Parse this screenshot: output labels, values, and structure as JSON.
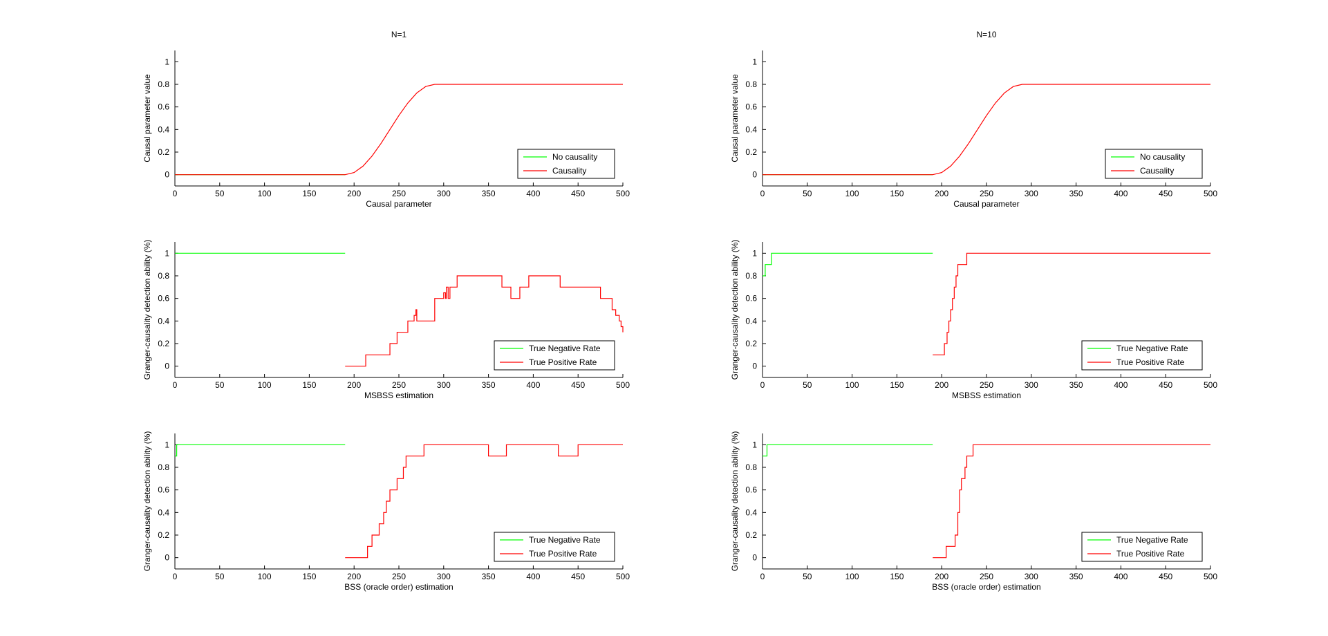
{
  "figure": {
    "background": "#ffffff",
    "colors": {
      "green": "#00ff00",
      "red": "#ff0000",
      "axis": "#000000"
    }
  },
  "chart_data": [
    {
      "id": "n1-causal",
      "type": "line",
      "title": "N=1",
      "xlabel": "Causal parameter",
      "ylabel": "Causal parameter value",
      "xlim": [
        0,
        500
      ],
      "ylim": [
        -0.1,
        1.1
      ],
      "xticks": [
        0,
        50,
        100,
        150,
        200,
        250,
        300,
        350,
        400,
        450,
        500
      ],
      "yticks": [
        0,
        0.2,
        0.4,
        0.6,
        0.8,
        1
      ],
      "ytick_labels": [
        "0",
        "0.2",
        "0.4",
        "0.6",
        "0.8",
        "1"
      ],
      "legend_position": "bottom-right",
      "series": [
        {
          "name": "No causality",
          "color": "#00ff00",
          "step": false,
          "x": [
            0,
            190
          ],
          "y": [
            0,
            0
          ]
        },
        {
          "name": "Causality",
          "color": "#ff0000",
          "step": false,
          "x": [
            0,
            190,
            200,
            210,
            220,
            230,
            240,
            250,
            260,
            270,
            280,
            290,
            300,
            350,
            400,
            450,
            500
          ],
          "y": [
            0,
            0,
            0.019,
            0.076,
            0.165,
            0.276,
            0.4,
            0.524,
            0.635,
            0.724,
            0.781,
            0.8,
            0.8,
            0.8,
            0.8,
            0.8,
            0.8
          ]
        }
      ]
    },
    {
      "id": "n10-causal",
      "type": "line",
      "title": "N=10",
      "xlabel": "Causal parameter",
      "ylabel": "Causal parameter value",
      "xlim": [
        0,
        500
      ],
      "ylim": [
        -0.1,
        1.1
      ],
      "xticks": [
        0,
        50,
        100,
        150,
        200,
        250,
        300,
        350,
        400,
        450,
        500
      ],
      "yticks": [
        0,
        0.2,
        0.4,
        0.6,
        0.8,
        1
      ],
      "ytick_labels": [
        "0",
        "0.2",
        "0.4",
        "0.6",
        "0.8",
        "1"
      ],
      "legend_position": "bottom-right",
      "series": [
        {
          "name": "No causality",
          "color": "#00ff00",
          "step": false,
          "x": [
            0,
            190
          ],
          "y": [
            0,
            0
          ]
        },
        {
          "name": "Causality",
          "color": "#ff0000",
          "step": false,
          "x": [
            0,
            190,
            200,
            210,
            220,
            230,
            240,
            250,
            260,
            270,
            280,
            290,
            300,
            350,
            400,
            450,
            500
          ],
          "y": [
            0,
            0,
            0.019,
            0.076,
            0.165,
            0.276,
            0.4,
            0.524,
            0.635,
            0.724,
            0.781,
            0.8,
            0.8,
            0.8,
            0.8,
            0.8,
            0.8
          ]
        }
      ]
    },
    {
      "id": "n1-msbss",
      "type": "line",
      "title": "",
      "xlabel": "MSBSS estimation",
      "ylabel": "Granger-causality detection ability (%)",
      "xlim": [
        0,
        500
      ],
      "ylim": [
        -0.1,
        1.1
      ],
      "xticks": [
        0,
        50,
        100,
        150,
        200,
        250,
        300,
        350,
        400,
        450,
        500
      ],
      "yticks": [
        0,
        0.2,
        0.4,
        0.6,
        0.8,
        1
      ],
      "ytick_labels": [
        "0",
        "0.2",
        "0.4",
        "0.6",
        "0.8",
        "1"
      ],
      "legend_position": "bottom-right",
      "series": [
        {
          "name": "True Negative Rate",
          "color": "#00ff00",
          "step": true,
          "x": [
            0,
            190
          ],
          "y": [
            1,
            1
          ]
        },
        {
          "name": "True Positive Rate",
          "color": "#ff0000",
          "step": true,
          "x": [
            190,
            213,
            240,
            248,
            260,
            267,
            269,
            270,
            272,
            290,
            300,
            302,
            303,
            305,
            307,
            315,
            365,
            375,
            385,
            395,
            430,
            475,
            488,
            492,
            496,
            498,
            500
          ],
          "y": [
            0,
            0.1,
            0.2,
            0.3,
            0.4,
            0.45,
            0.5,
            0.4,
            0.4,
            0.6,
            0.65,
            0.6,
            0.7,
            0.6,
            0.7,
            0.8,
            0.7,
            0.6,
            0.7,
            0.8,
            0.7,
            0.6,
            0.5,
            0.45,
            0.4,
            0.35,
            0.3
          ]
        }
      ]
    },
    {
      "id": "n10-msbss",
      "type": "line",
      "title": "",
      "xlabel": "MSBSS estimation",
      "ylabel": "Granger-causality detection ability (%)",
      "xlim": [
        0,
        500
      ],
      "ylim": [
        -0.1,
        1.1
      ],
      "xticks": [
        0,
        50,
        100,
        150,
        200,
        250,
        300,
        350,
        400,
        450,
        500
      ],
      "yticks": [
        0,
        0.2,
        0.4,
        0.6,
        0.8,
        1
      ],
      "ytick_labels": [
        "0",
        "0.2",
        "0.4",
        "0.6",
        "0.8",
        "1"
      ],
      "legend_position": "bottom-right",
      "series": [
        {
          "name": "True Negative Rate",
          "color": "#00ff00",
          "step": true,
          "x": [
            0,
            3,
            5,
            10,
            190
          ],
          "y": [
            0.8,
            0.9,
            0.9,
            1,
            1
          ]
        },
        {
          "name": "True Positive Rate",
          "color": "#ff0000",
          "step": true,
          "x": [
            190,
            203,
            206,
            208,
            210,
            212,
            214,
            216,
            218,
            222,
            228,
            500
          ],
          "y": [
            0.1,
            0.2,
            0.3,
            0.4,
            0.5,
            0.6,
            0.7,
            0.8,
            0.9,
            0.9,
            1,
            1
          ]
        }
      ]
    },
    {
      "id": "n1-bss",
      "type": "line",
      "title": "",
      "xlabel": "BSS (oracle order) estimation",
      "ylabel": "Granger-causality detection ability (%)",
      "xlim": [
        0,
        500
      ],
      "ylim": [
        -0.1,
        1.1
      ],
      "xticks": [
        0,
        50,
        100,
        150,
        200,
        250,
        300,
        350,
        400,
        450,
        500
      ],
      "yticks": [
        0,
        0.2,
        0.4,
        0.6,
        0.8,
        1
      ],
      "ytick_labels": [
        "0",
        "0.2",
        "0.4",
        "0.6",
        "0.8",
        "1"
      ],
      "legend_position": "bottom-right",
      "series": [
        {
          "name": "True Negative Rate",
          "color": "#00ff00",
          "step": true,
          "x": [
            0,
            2,
            190
          ],
          "y": [
            0.9,
            1,
            1
          ]
        },
        {
          "name": "True Positive Rate",
          "color": "#ff0000",
          "step": true,
          "x": [
            190,
            215,
            220,
            225,
            228,
            233,
            236,
            240,
            245,
            248,
            252,
            255,
            258,
            262,
            265,
            278,
            350,
            370,
            428,
            450,
            500
          ],
          "y": [
            0,
            0.1,
            0.2,
            0.2,
            0.3,
            0.4,
            0.5,
            0.6,
            0.6,
            0.7,
            0.7,
            0.8,
            0.9,
            0.9,
            0.9,
            1,
            0.9,
            1,
            0.9,
            1,
            1
          ]
        }
      ]
    },
    {
      "id": "n10-bss",
      "type": "line",
      "title": "",
      "xlabel": "BSS (oracle order) estimation",
      "ylabel": "Granger-causality detection ability (%)",
      "xlim": [
        0,
        500
      ],
      "ylim": [
        -0.1,
        1.1
      ],
      "xticks": [
        0,
        50,
        100,
        150,
        200,
        250,
        300,
        350,
        400,
        450,
        500
      ],
      "yticks": [
        0,
        0.2,
        0.4,
        0.6,
        0.8,
        1
      ],
      "ytick_labels": [
        "0",
        "0.2",
        "0.4",
        "0.6",
        "0.8",
        "1"
      ],
      "legend_position": "bottom-right",
      "series": [
        {
          "name": "True Negative Rate",
          "color": "#00ff00",
          "step": true,
          "x": [
            0,
            5,
            190
          ],
          "y": [
            0.9,
            1,
            1
          ]
        },
        {
          "name": "True Positive Rate",
          "color": "#ff0000",
          "step": true,
          "x": [
            190,
            205,
            215,
            218,
            220,
            222,
            224,
            226,
            228,
            232,
            235,
            500
          ],
          "y": [
            0,
            0.1,
            0.2,
            0.4,
            0.6,
            0.7,
            0.7,
            0.8,
            0.9,
            0.9,
            1,
            1
          ]
        }
      ]
    }
  ]
}
